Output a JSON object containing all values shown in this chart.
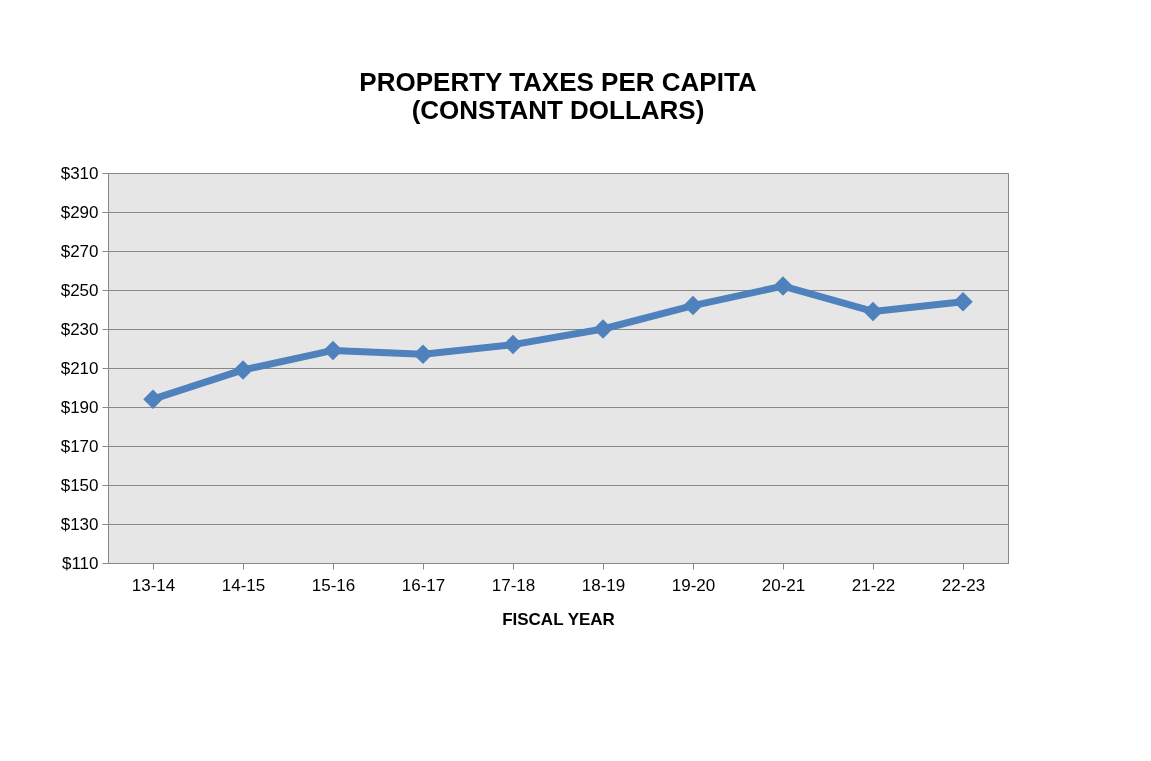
{
  "chart_data": {
    "type": "line",
    "title": [
      "PROPERTY TAXES PER CAPITA",
      "(CONSTANT DOLLARS)"
    ],
    "xlabel": "FISCAL YEAR",
    "categories": [
      "13-14",
      "14-15",
      "15-16",
      "16-17",
      "17-18",
      "18-19",
      "19-20",
      "20-21",
      "21-22",
      "22-23"
    ],
    "series": [
      {
        "color": "#4f81bd",
        "values": [
          194,
          209,
          219,
          217,
          222,
          230,
          242,
          252,
          239,
          244
        ]
      }
    ],
    "ylim": [
      110,
      310
    ],
    "yticks": [
      {
        "value": 110,
        "label": "$110"
      },
      {
        "value": 130,
        "label": "$130"
      },
      {
        "value": 150,
        "label": "$150"
      },
      {
        "value": 170,
        "label": "$170"
      },
      {
        "value": 190,
        "label": "$190"
      },
      {
        "value": 210,
        "label": "$210"
      },
      {
        "value": 230,
        "label": "$230"
      },
      {
        "value": 250,
        "label": "$250"
      },
      {
        "value": 270,
        "label": "$270"
      },
      {
        "value": 290,
        "label": "$290"
      },
      {
        "value": 310,
        "label": "$310"
      }
    ],
    "grid": "y",
    "marker": "diamond",
    "line_style": "solid"
  }
}
